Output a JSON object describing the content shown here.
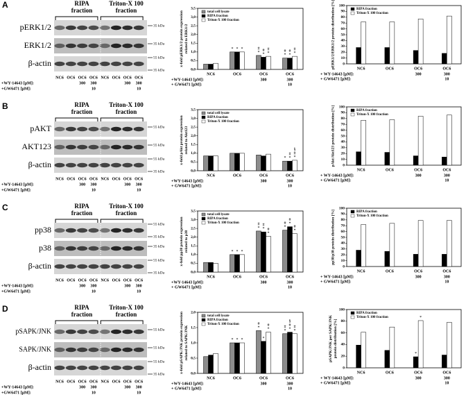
{
  "blots": [
    {
      "letter": "A",
      "fractions": [
        [
          "RIPA",
          "fraction"
        ],
        [
          "Triton-X 100",
          "fraction"
        ]
      ],
      "rows": [
        {
          "label": "pERK1/2",
          "markers": [
            "35 kDa"
          ]
        },
        {
          "label": "ERK1/2",
          "markers": [
            "35 kDa"
          ]
        },
        {
          "label": "β-actin",
          "markers": [
            "55 kDa",
            "35 kDa"
          ]
        }
      ],
      "lanes": [
        "NC6",
        "OC6",
        "OC6",
        "OC6",
        "NC6",
        "OC6",
        "OC6",
        "OC6"
      ],
      "wy_label": "+WY-14643 [µM]:",
      "wy": [
        null,
        null,
        "300",
        "300",
        null,
        null,
        "300",
        "300"
      ],
      "gw_label": "+GW6471 [µM]:",
      "gw": [
        null,
        null,
        null,
        "10",
        null,
        null,
        null,
        "10"
      ]
    },
    {
      "letter": "B",
      "fractions": [
        [
          "RIPA",
          "fraction"
        ],
        [
          "Triton-X 100",
          "fraction"
        ]
      ],
      "rows": [
        {
          "label": "pAKT",
          "markers": [
            "55 kDa"
          ]
        },
        {
          "label": "AKT123",
          "markers": [
            "55 kDa"
          ]
        },
        {
          "label": "β-actin",
          "markers": [
            "55 kDa",
            "35 kDa"
          ]
        }
      ],
      "lanes": [
        "NC6",
        "OC6",
        "OC6",
        "OC6",
        "NC6",
        "OC6",
        "OC6",
        "OC6"
      ],
      "wy_label": "+WY-14643 [µM]:",
      "wy": [
        null,
        null,
        "300",
        "300",
        null,
        null,
        "300",
        "300"
      ],
      "gw_label": "+GW6471 [µM]:",
      "gw": [
        null,
        null,
        null,
        "10",
        null,
        null,
        null,
        "10"
      ]
    },
    {
      "letter": "C",
      "fractions": [
        [
          "RIPA",
          "fraction"
        ],
        [
          "Triton-X 100",
          "fraction"
        ]
      ],
      "rows": [
        {
          "label": "pp38",
          "markers": [
            "55 kDa",
            "35 kDa"
          ]
        },
        {
          "label": "p38",
          "markers": [
            "35 kDa"
          ]
        },
        {
          "label": "β-actin",
          "markers": [
            "55 kDa",
            "35 kDa"
          ]
        }
      ],
      "lanes": [
        "NC6",
        "OC6",
        "OC6",
        "OC6",
        "NC6",
        "OC6",
        "OC6",
        "OC6"
      ],
      "wy_label": "+WY-14643 [µM]:",
      "wy": [
        null,
        null,
        "300",
        "300",
        null,
        null,
        "300",
        "300"
      ],
      "gw_label": "+GW6471 [µM]:",
      "gw": [
        null,
        null,
        null,
        "10",
        null,
        null,
        null,
        "10"
      ]
    },
    {
      "letter": "D",
      "fractions": [
        [
          "RIPA",
          "fraction"
        ],
        [
          "Triton-X 100",
          "fraction"
        ]
      ],
      "rows": [
        {
          "label": "pSAPK/JNK",
          "markers": [
            "55 kDa"
          ]
        },
        {
          "label": "SAPK/JNK",
          "markers": [
            "55 kDa"
          ]
        },
        {
          "label": "β-actin",
          "markers": [
            "55 kDa",
            "35 kDa"
          ]
        }
      ],
      "lanes": [
        "NC6",
        "OC6",
        "OC6",
        "OC6",
        "NC6",
        "OC6",
        "OC6",
        "OC6"
      ],
      "wy_label": "+WY-14643 [µM]:",
      "wy": [
        null,
        null,
        "300",
        "300",
        null,
        null,
        "300",
        "300"
      ],
      "gw_label": "+GW6471 [µM]:",
      "gw": [
        null,
        null,
        null,
        "10",
        null,
        null,
        null,
        "10"
      ]
    }
  ],
  "chart_data": [
    {
      "type": "bar",
      "ylabel": [
        "x-fold pERK1/2 protein expression",
        "related to ERK1/2"
      ],
      "categories": [
        "NC6",
        "OC6",
        "OC6",
        "OC6"
      ],
      "x_rows": [
        {
          "label": "+WY-14643 [µM]:",
          "values": [
            null,
            null,
            "300",
            "300"
          ]
        },
        {
          "label": "+ GW6471 [µM]:",
          "values": [
            null,
            null,
            null,
            "10"
          ]
        }
      ],
      "ylim": [
        0,
        3.5
      ],
      "yticks": [
        {
          "value": 0,
          "label": "0,0"
        },
        {
          "value": 0.5,
          "label": "0,5"
        },
        {
          "value": 1,
          "label": "1,0"
        },
        {
          "value": 1.5,
          "label": "1,5"
        },
        {
          "value": 2,
          "label": "2,0"
        },
        {
          "value": 2.5,
          "label": "2,5"
        },
        {
          "value": 3,
          "label": "3,0"
        },
        {
          "value": 3.5,
          "label": "3,5"
        }
      ],
      "legend": "top-left",
      "series": [
        {
          "name": "total cell lysate",
          "color": "#8c8c8c",
          "values": [
            0.3,
            1,
            0.8,
            0.65
          ],
          "sig": [
            null,
            "*",
            "# *",
            "# *"
          ]
        },
        {
          "name": "RIPA fraction",
          "color": "#000000",
          "values": [
            0.3,
            1,
            0.7,
            0.65
          ],
          "sig": [
            null,
            "*",
            "# *",
            "# *"
          ]
        },
        {
          "name": "Triton-X 100 fraction",
          "color": "#ffffff",
          "values": [
            0.35,
            1,
            0.75,
            0.75
          ],
          "sig": [
            null,
            "*",
            "# *",
            "# *"
          ]
        }
      ]
    },
    {
      "type": "bar",
      "ylabel": [
        "pERK1/2/ERK1/2 protein distribution [%]"
      ],
      "categories": [
        "NC6",
        "OC6",
        "OC6",
        "OC6"
      ],
      "x_rows": [
        {
          "label": "+ WY-14643 [µM]:",
          "values": [
            null,
            null,
            "300",
            "300"
          ]
        },
        {
          "label": "+ GW6471 [µM]:",
          "values": [
            null,
            null,
            null,
            "10"
          ]
        }
      ],
      "ylim": [
        0,
        100
      ],
      "yticks": [
        0,
        10,
        20,
        30,
        40,
        50,
        60,
        70,
        80,
        90,
        100
      ],
      "legend": "top-left",
      "series": [
        {
          "name": "RIPA fraction",
          "color": "#000000",
          "values": [
            28,
            28,
            23,
            18
          ],
          "sig": [
            null,
            null,
            null,
            null
          ]
        },
        {
          "name": "Triton-X 100 fraction",
          "color": "#ffffff",
          "values": [
            72,
            72,
            77,
            82
          ],
          "sig": [
            null,
            null,
            null,
            null
          ]
        }
      ]
    },
    {
      "type": "bar",
      "ylabel": [
        "x-fold pAkt protein expression",
        "related to Akt123"
      ],
      "categories": [
        "NC6",
        "OC6",
        "OC6",
        "OC6"
      ],
      "x_rows": [
        {
          "label": "+WY-14643 [µM]:",
          "values": [
            null,
            null,
            "300",
            "300"
          ]
        },
        {
          "label": "+ GW6471 [µM]:",
          "values": [
            null,
            null,
            null,
            "10"
          ]
        }
      ],
      "ylim": [
        0,
        3.5
      ],
      "yticks": [
        {
          "value": 0,
          "label": "0,0"
        },
        {
          "value": 0.5,
          "label": "0,5"
        },
        {
          "value": 1,
          "label": "1,0"
        },
        {
          "value": 1.5,
          "label": "1,5"
        },
        {
          "value": 2,
          "label": "2,0"
        },
        {
          "value": 2.5,
          "label": "2,5"
        },
        {
          "value": 3,
          "label": "3,0"
        },
        {
          "value": 3.5,
          "label": "3,5"
        }
      ],
      "legend": "top-left",
      "series": [
        {
          "name": "total cell lysate",
          "color": "#8c8c8c",
          "values": [
            0.85,
            1,
            0.9,
            0.55
          ],
          "sig": [
            null,
            null,
            null,
            "*"
          ]
        },
        {
          "name": "RIPA fraction",
          "color": "#000000",
          "values": [
            0.85,
            1,
            0.85,
            0.55
          ],
          "sig": [
            null,
            null,
            null,
            "# *"
          ]
        },
        {
          "name": "Triton-X 100 fraction",
          "color": "#ffffff",
          "values": [
            0.85,
            1,
            0.95,
            0.6
          ],
          "sig": [
            null,
            null,
            null,
            "§ # *"
          ]
        }
      ]
    },
    {
      "type": "bar",
      "ylabel": [
        "pAkt/Akt123 protein distribution [%]"
      ],
      "categories": [
        "NC6",
        "OC6",
        "OC6",
        "OC6"
      ],
      "x_rows": [
        {
          "label": "+ WY-14643 [µM]:",
          "values": [
            null,
            null,
            "300",
            "300"
          ]
        },
        {
          "label": "+ GW6471 [µM]:",
          "values": [
            null,
            null,
            null,
            "10"
          ]
        }
      ],
      "ylim": [
        0,
        100
      ],
      "yticks": [
        0,
        10,
        20,
        30,
        40,
        50,
        60,
        70,
        80,
        90,
        100
      ],
      "legend": "top-left",
      "series": [
        {
          "name": "RIPA fraction",
          "color": "#000000",
          "values": [
            23,
            22,
            16,
            14
          ],
          "sig": [
            null,
            null,
            null,
            null
          ]
        },
        {
          "name": "Triton-X 100 fraction",
          "color": "#ffffff",
          "values": [
            77,
            78,
            84,
            86
          ],
          "sig": [
            null,
            null,
            null,
            null
          ]
        }
      ]
    },
    {
      "type": "bar",
      "ylabel": [
        "x-fold pp38 protein expression",
        "related to p38"
      ],
      "categories": [
        "NC6",
        "OC6",
        "OC6",
        "OC6"
      ],
      "x_rows": [
        {
          "label": "+WY-14643 [µM]:",
          "values": [
            null,
            null,
            "300",
            "300"
          ]
        },
        {
          "label": "+ GW6471 [µM]:",
          "values": [
            null,
            null,
            null,
            "10"
          ]
        }
      ],
      "ylim": [
        0,
        3.5
      ],
      "yticks": [
        {
          "value": 0,
          "label": "0,0"
        },
        {
          "value": 0.5,
          "label": "0,5"
        },
        {
          "value": 1,
          "label": "1,0"
        },
        {
          "value": 1.5,
          "label": "1,5"
        },
        {
          "value": 2,
          "label": "2,0"
        },
        {
          "value": 2.5,
          "label": "2,5"
        },
        {
          "value": 3,
          "label": "3,0"
        },
        {
          "value": 3.5,
          "label": "3,5"
        }
      ],
      "legend": "top-left",
      "series": [
        {
          "name": "total cell lysate",
          "color": "#8c8c8c",
          "values": [
            0.55,
            1,
            2.35,
            2.4
          ],
          "sig": [
            null,
            "*",
            "# *",
            "# *"
          ]
        },
        {
          "name": "RIPA fraction",
          "color": "#000000",
          "values": [
            0.55,
            1,
            2.3,
            2.6
          ],
          "sig": [
            null,
            "*",
            "# *",
            "# *"
          ]
        },
        {
          "name": "Triton-X 100 fraction",
          "color": "#ffffff",
          "values": [
            0.5,
            1,
            2.05,
            2.2
          ],
          "sig": [
            null,
            "*",
            "# *",
            "# *"
          ]
        }
      ]
    },
    {
      "type": "bar",
      "ylabel": [
        "pp38/p38 protein distribution [%]"
      ],
      "categories": [
        "NC6",
        "OC6",
        "OC6",
        "OC6"
      ],
      "x_rows": [
        {
          "label": "+ WY-14643 [µM]:",
          "values": [
            null,
            null,
            "300",
            "300"
          ]
        },
        {
          "label": "+ GW6471 [µM]:",
          "values": [
            null,
            null,
            null,
            "10"
          ]
        }
      ],
      "ylim": [
        0,
        100
      ],
      "yticks": [
        0,
        10,
        20,
        30,
        40,
        50,
        60,
        70,
        80,
        90,
        100
      ],
      "legend": "top-left",
      "series": [
        {
          "name": "RIPA fraction",
          "color": "#000000",
          "values": [
            28,
            26,
            21,
            21
          ],
          "sig": [
            null,
            null,
            null,
            null
          ]
        },
        {
          "name": "Triton-X 100 fraction",
          "color": "#ffffff",
          "values": [
            72,
            74,
            79,
            79
          ],
          "sig": [
            null,
            null,
            null,
            null
          ]
        }
      ]
    },
    {
      "type": "bar",
      "ylabel": [
        "x-fold pSAPK/JNK protein expression",
        "related to SAPK/JNK"
      ],
      "categories": [
        "NC6",
        "OC6",
        "OC6",
        "OC6"
      ],
      "x_rows": [
        {
          "label": "+WY-14643 [µM]:",
          "values": [
            null,
            null,
            "300",
            "300"
          ]
        },
        {
          "label": "+ GW6471 [µM]:",
          "values": [
            null,
            null,
            null,
            "10"
          ]
        }
      ],
      "ylim": [
        0,
        2
      ],
      "yticks": [
        {
          "value": 0,
          "label": "0,0"
        },
        {
          "value": 0.5,
          "label": "0,5"
        },
        {
          "value": 1,
          "label": "1,0"
        },
        {
          "value": 1.5,
          "label": "1,5"
        },
        {
          "value": 2,
          "label": "2,0"
        }
      ],
      "legend": "top-left",
      "series": [
        {
          "name": "total cell lysate",
          "color": "#8c8c8c",
          "values": [
            0.55,
            1,
            1.4,
            1.3
          ],
          "sig": [
            null,
            "*",
            "# *",
            "# *"
          ]
        },
        {
          "name": "RIPA fraction",
          "color": "#000000",
          "values": [
            0.6,
            1,
            1.05,
            1.35
          ],
          "sig": [
            null,
            "*",
            "*",
            "§ # *"
          ]
        },
        {
          "name": "Triton-X 100 fraction",
          "color": "#ffffff",
          "values": [
            0.65,
            1,
            1.35,
            1.3
          ],
          "sig": [
            null,
            "*",
            "# *",
            "# *"
          ]
        }
      ]
    },
    {
      "type": "bar",
      "ylabel": [
        "pSAPK/JNK per SAPK/JNK",
        "protein distribution [%]"
      ],
      "categories": [
        "NC6",
        "OC6",
        "OC6",
        "OC6"
      ],
      "x_rows": [
        {
          "label": "+ WY-14643 [µM]:",
          "values": [
            null,
            null,
            "300",
            "300"
          ]
        },
        {
          "label": "+ GW6471 [µM]:",
          "values": [
            null,
            null,
            null,
            "10"
          ]
        }
      ],
      "ylim": [
        0,
        100
      ],
      "yticks": [
        0,
        20,
        40,
        60,
        80,
        100
      ],
      "legend": "top-left",
      "series": [
        {
          "name": "RIPA fraction",
          "color": "#000000",
          "values": [
            39,
            30,
            19,
            22
          ],
          "sig": [
            null,
            null,
            "*",
            null
          ]
        },
        {
          "name": "Triton-X 100 fraction",
          "color": "#ffffff",
          "values": [
            61,
            70,
            81,
            78
          ],
          "sig": [
            null,
            null,
            "*",
            null
          ]
        }
      ]
    }
  ]
}
